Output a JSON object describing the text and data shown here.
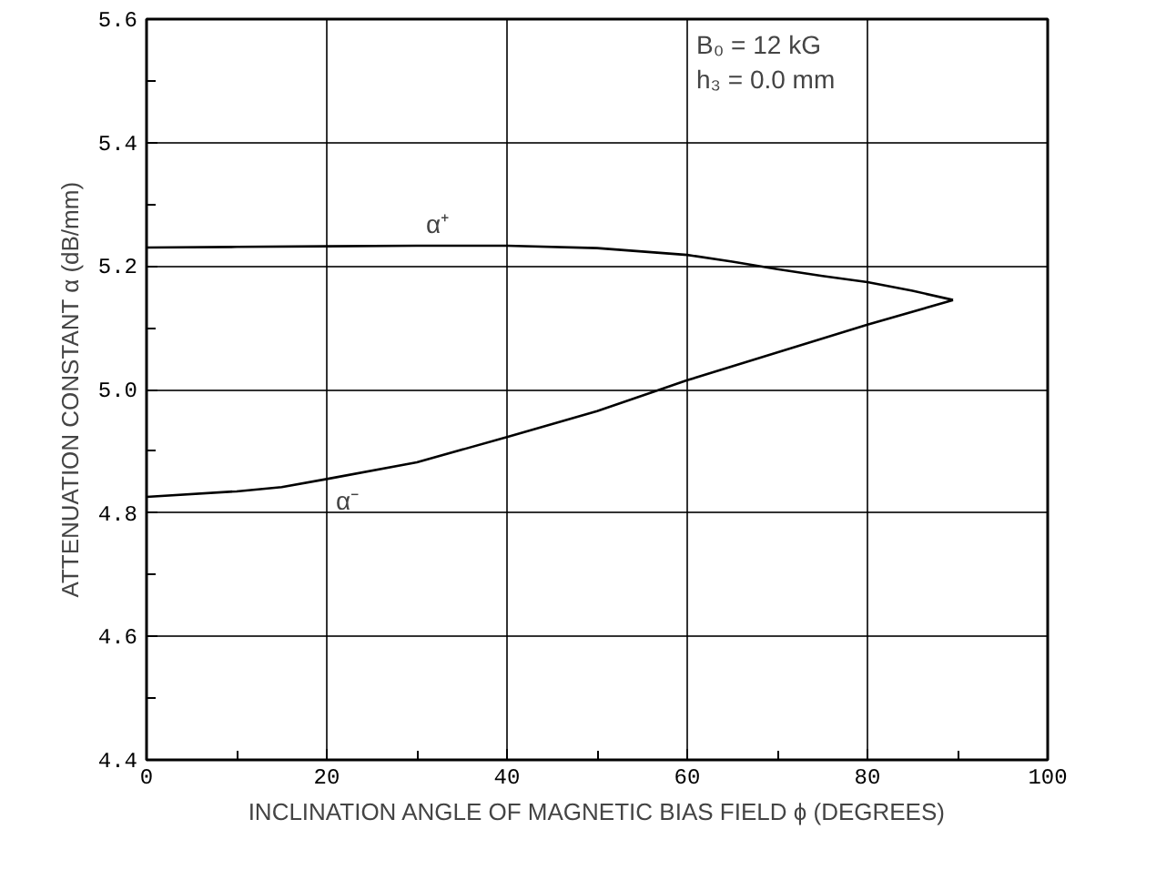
{
  "chart_data": {
    "type": "line",
    "xlabel": "INCLINATION ANGLE OF MAGNETIC BIAS FIELD ϕ (DEGREES)",
    "ylabel": "ATTENUATION CONSTANT α (dB/mm)",
    "series": [
      {
        "name": "α⁺",
        "color": "#000000",
        "x": [
          0,
          10,
          20,
          30,
          40,
          50,
          60,
          65,
          70,
          75,
          80,
          85,
          89.5
        ],
        "values": [
          5.23,
          5.231,
          5.232,
          5.233,
          5.233,
          5.229,
          5.218,
          5.207,
          5.195,
          5.184,
          5.174,
          5.16,
          5.145
        ]
      },
      {
        "name": "α⁻",
        "color": "#000000",
        "x": [
          0,
          10,
          15,
          20,
          30,
          40,
          50,
          57,
          60,
          70,
          80,
          89.5
        ],
        "values": [
          4.826,
          4.835,
          4.842,
          4.855,
          4.882,
          4.923,
          4.965,
          5.0,
          5.015,
          5.06,
          5.105,
          5.145
        ]
      }
    ],
    "annotations": [
      "B₀ = 12 kG",
      "h₃ = 0.0 mm"
    ],
    "xlim": [
      0,
      100
    ],
    "xticks": [
      0,
      {
        "value": 10,
        "label": null
      },
      20,
      {
        "value": 30,
        "label": null
      },
      40,
      {
        "value": 50,
        "label": null
      },
      60,
      {
        "value": 70,
        "label": null
      },
      80,
      {
        "value": 90,
        "label": null
      },
      100
    ],
    "ylim": [
      4.4,
      5.6
    ],
    "yticks": [
      4.4,
      {
        "value": 4.5,
        "label": null
      },
      4.6,
      {
        "value": 4.7,
        "label": null
      },
      4.8,
      {
        "value": 4.9,
        "label": null
      },
      {
        "value": 5.0,
        "label": "5.0"
      },
      {
        "value": 5.1,
        "label": null
      },
      5.2,
      {
        "value": 5.3,
        "label": null
      },
      5.4,
      {
        "value": 5.5,
        "label": null
      },
      5.6
    ],
    "grid": true,
    "line_style": "solid",
    "marker": "none"
  }
}
